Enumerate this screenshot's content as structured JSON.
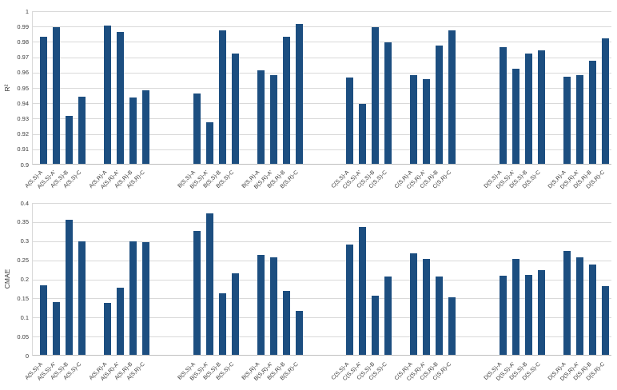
{
  "colors": {
    "bar": "#1C4E80",
    "gridline": "#D9D9D9",
    "axis_line": "#BFBFBF",
    "text": "#3A3A3A"
  },
  "chart_data": [
    {
      "type": "bar",
      "title": "",
      "xlabel": "",
      "ylabel": "R²",
      "ylim": [
        0.9,
        1
      ],
      "grid": true,
      "legend": false,
      "ytick_values": [
        1,
        0.99,
        0.98,
        0.97,
        0.96,
        0.95,
        0.94,
        0.93,
        0.92,
        0.91,
        0.9
      ],
      "yticks": [
        "1",
        "0.99",
        "0.98",
        "0.97",
        "0.96",
        "0.95",
        "0.94",
        "0.93",
        "0.92",
        "0.91",
        "0.9"
      ],
      "categories": [
        "A(S,S)-A",
        "A(S,S)-A'",
        "A(S,S)-B",
        "A(S,S)-C",
        "A(S,R)-A",
        "A(S,R)-A'",
        "A(S,R)-B",
        "A(S,R)-C",
        "B(S,S)-A",
        "B(S,S)-A'",
        "B(S,S)-B",
        "B(S,S)-C",
        "B(S,R)-A",
        "B(S,R)-A'",
        "B(S,R)-B",
        "B(S,R)-C",
        "C(S,S)-A",
        "C(S,S)-A'",
        "C(S,S)-B",
        "C(S,S)-C",
        "C(S,R)-A",
        "C(S,R)-A'",
        "C(S,R)-B",
        "C(S,R)-C",
        "D(S,S)-A",
        "D(S,S)-A'",
        "D(S,S)-B",
        "D(S,S)-C",
        "D(S,R)-A",
        "D(S,R)-A'",
        "D(S,R)-B",
        "D(S,R)-C"
      ],
      "values": [
        0.983,
        0.989,
        0.931,
        0.944,
        0.99,
        0.986,
        0.943,
        0.948,
        0.946,
        0.927,
        0.987,
        0.972,
        0.961,
        0.958,
        0.983,
        0.991,
        0.956,
        0.939,
        0.989,
        0.979,
        0.958,
        0.955,
        0.977,
        0.987,
        0.976,
        0.962,
        0.972,
        0.974,
        0.957,
        0.958,
        0.967,
        0.982
      ]
    },
    {
      "type": "bar",
      "title": "",
      "xlabel": "",
      "ylabel": "CMAE",
      "ylim": [
        0,
        0.4
      ],
      "grid": true,
      "legend": false,
      "ytick_values": [
        0.4,
        0.35,
        0.3,
        0.25,
        0.2,
        0.15,
        0.1,
        0.05,
        0
      ],
      "yticks": [
        "0.4",
        "0.35",
        "0.3",
        "0.25",
        "0.2",
        "0.15",
        "0.1",
        "0.05",
        "0"
      ],
      "categories": [
        "A(S,S)-A",
        "A(S,S)-A'",
        "A(S,S)-B",
        "A(S,S)-C",
        "A(S,R)-A",
        "A(S,R)-A'",
        "A(S,R)-B",
        "A(S,R)-C",
        "B(S,S)-A",
        "B(S,S)-A'",
        "B(S,S)-B",
        "B(S,S)-C",
        "B(S,R)-A",
        "B(S,R)-A'",
        "B(S,R)-B",
        "B(S,R)-C",
        "C(S,S)-A",
        "C(S,S)-A'",
        "C(S,S)-B",
        "C(S,S)-C",
        "C(S,R)-A",
        "C(S,R)-A'",
        "C(S,R)-B",
        "C(S,R)-C",
        "D(S,S)-A",
        "D(S,S)-A'",
        "D(S,S)-B",
        "D(S,S)-C",
        "D(S,R)-A",
        "D(S,R)-A'",
        "D(S,R)-B",
        "D(S,R)-C"
      ],
      "values": [
        0.182,
        0.139,
        0.355,
        0.297,
        0.137,
        0.175,
        0.298,
        0.296,
        0.325,
        0.37,
        0.162,
        0.213,
        0.262,
        0.255,
        0.168,
        0.115,
        0.29,
        0.335,
        0.155,
        0.205,
        0.265,
        0.252,
        0.205,
        0.151,
        0.207,
        0.251,
        0.21,
        0.222,
        0.272,
        0.256,
        0.237,
        0.18
      ]
    }
  ]
}
